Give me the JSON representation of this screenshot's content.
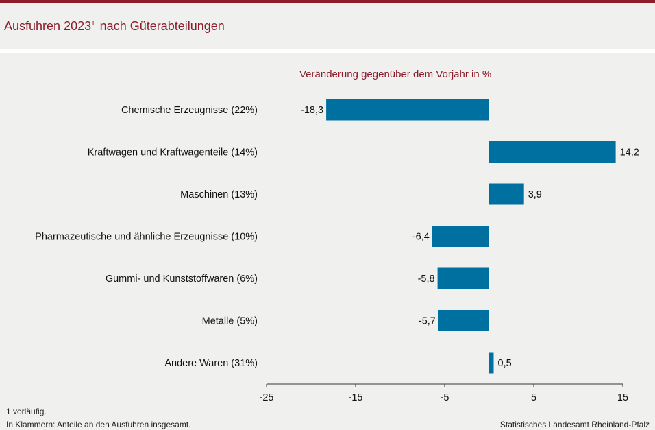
{
  "title": {
    "main": "Ausfuhren 2023",
    "sup": "1",
    "rest": " nach Güterabteilungen"
  },
  "colors": {
    "accent": "#8b1d2c",
    "bar": "#0070a0",
    "axis": "#333333"
  },
  "chart_data": {
    "type": "bar",
    "orientation": "horizontal",
    "title": "Ausfuhren 2023¹ nach Güterabteilungen",
    "subtitle": "Veränderung gegenüber dem Vorjahr in %",
    "categories": [
      "Chemische Erzeugnisse (22%)",
      "Kraftwagen und Kraftwagenteile (14%)",
      "Maschinen (13%)",
      "Pharmazeutische und ähnliche Erzeugnisse (10%)",
      "Gummi- und Kunststoffwaren (6%)",
      "Metalle (5%)",
      "Andere Waren (31%)"
    ],
    "values": [
      -18.3,
      14.2,
      3.9,
      -6.4,
      -5.8,
      -5.7,
      0.5
    ],
    "value_labels": [
      "-18,3",
      "14,2",
      "3,9",
      "-6,4",
      "-5,8",
      "-5,7",
      "0,5"
    ],
    "xlim": [
      -25,
      15
    ],
    "xticks": [
      -25,
      -15,
      -5,
      5,
      15
    ],
    "xtick_labels": [
      "-25",
      "-15",
      "-5",
      "5",
      "15"
    ],
    "grid": false
  },
  "footnotes": {
    "note1": "1 vorläufig.",
    "note2": "In Klammern: Anteile an den Ausfuhren insgesamt.",
    "source": "Statistisches Landesamt Rheinland-Pfalz"
  }
}
